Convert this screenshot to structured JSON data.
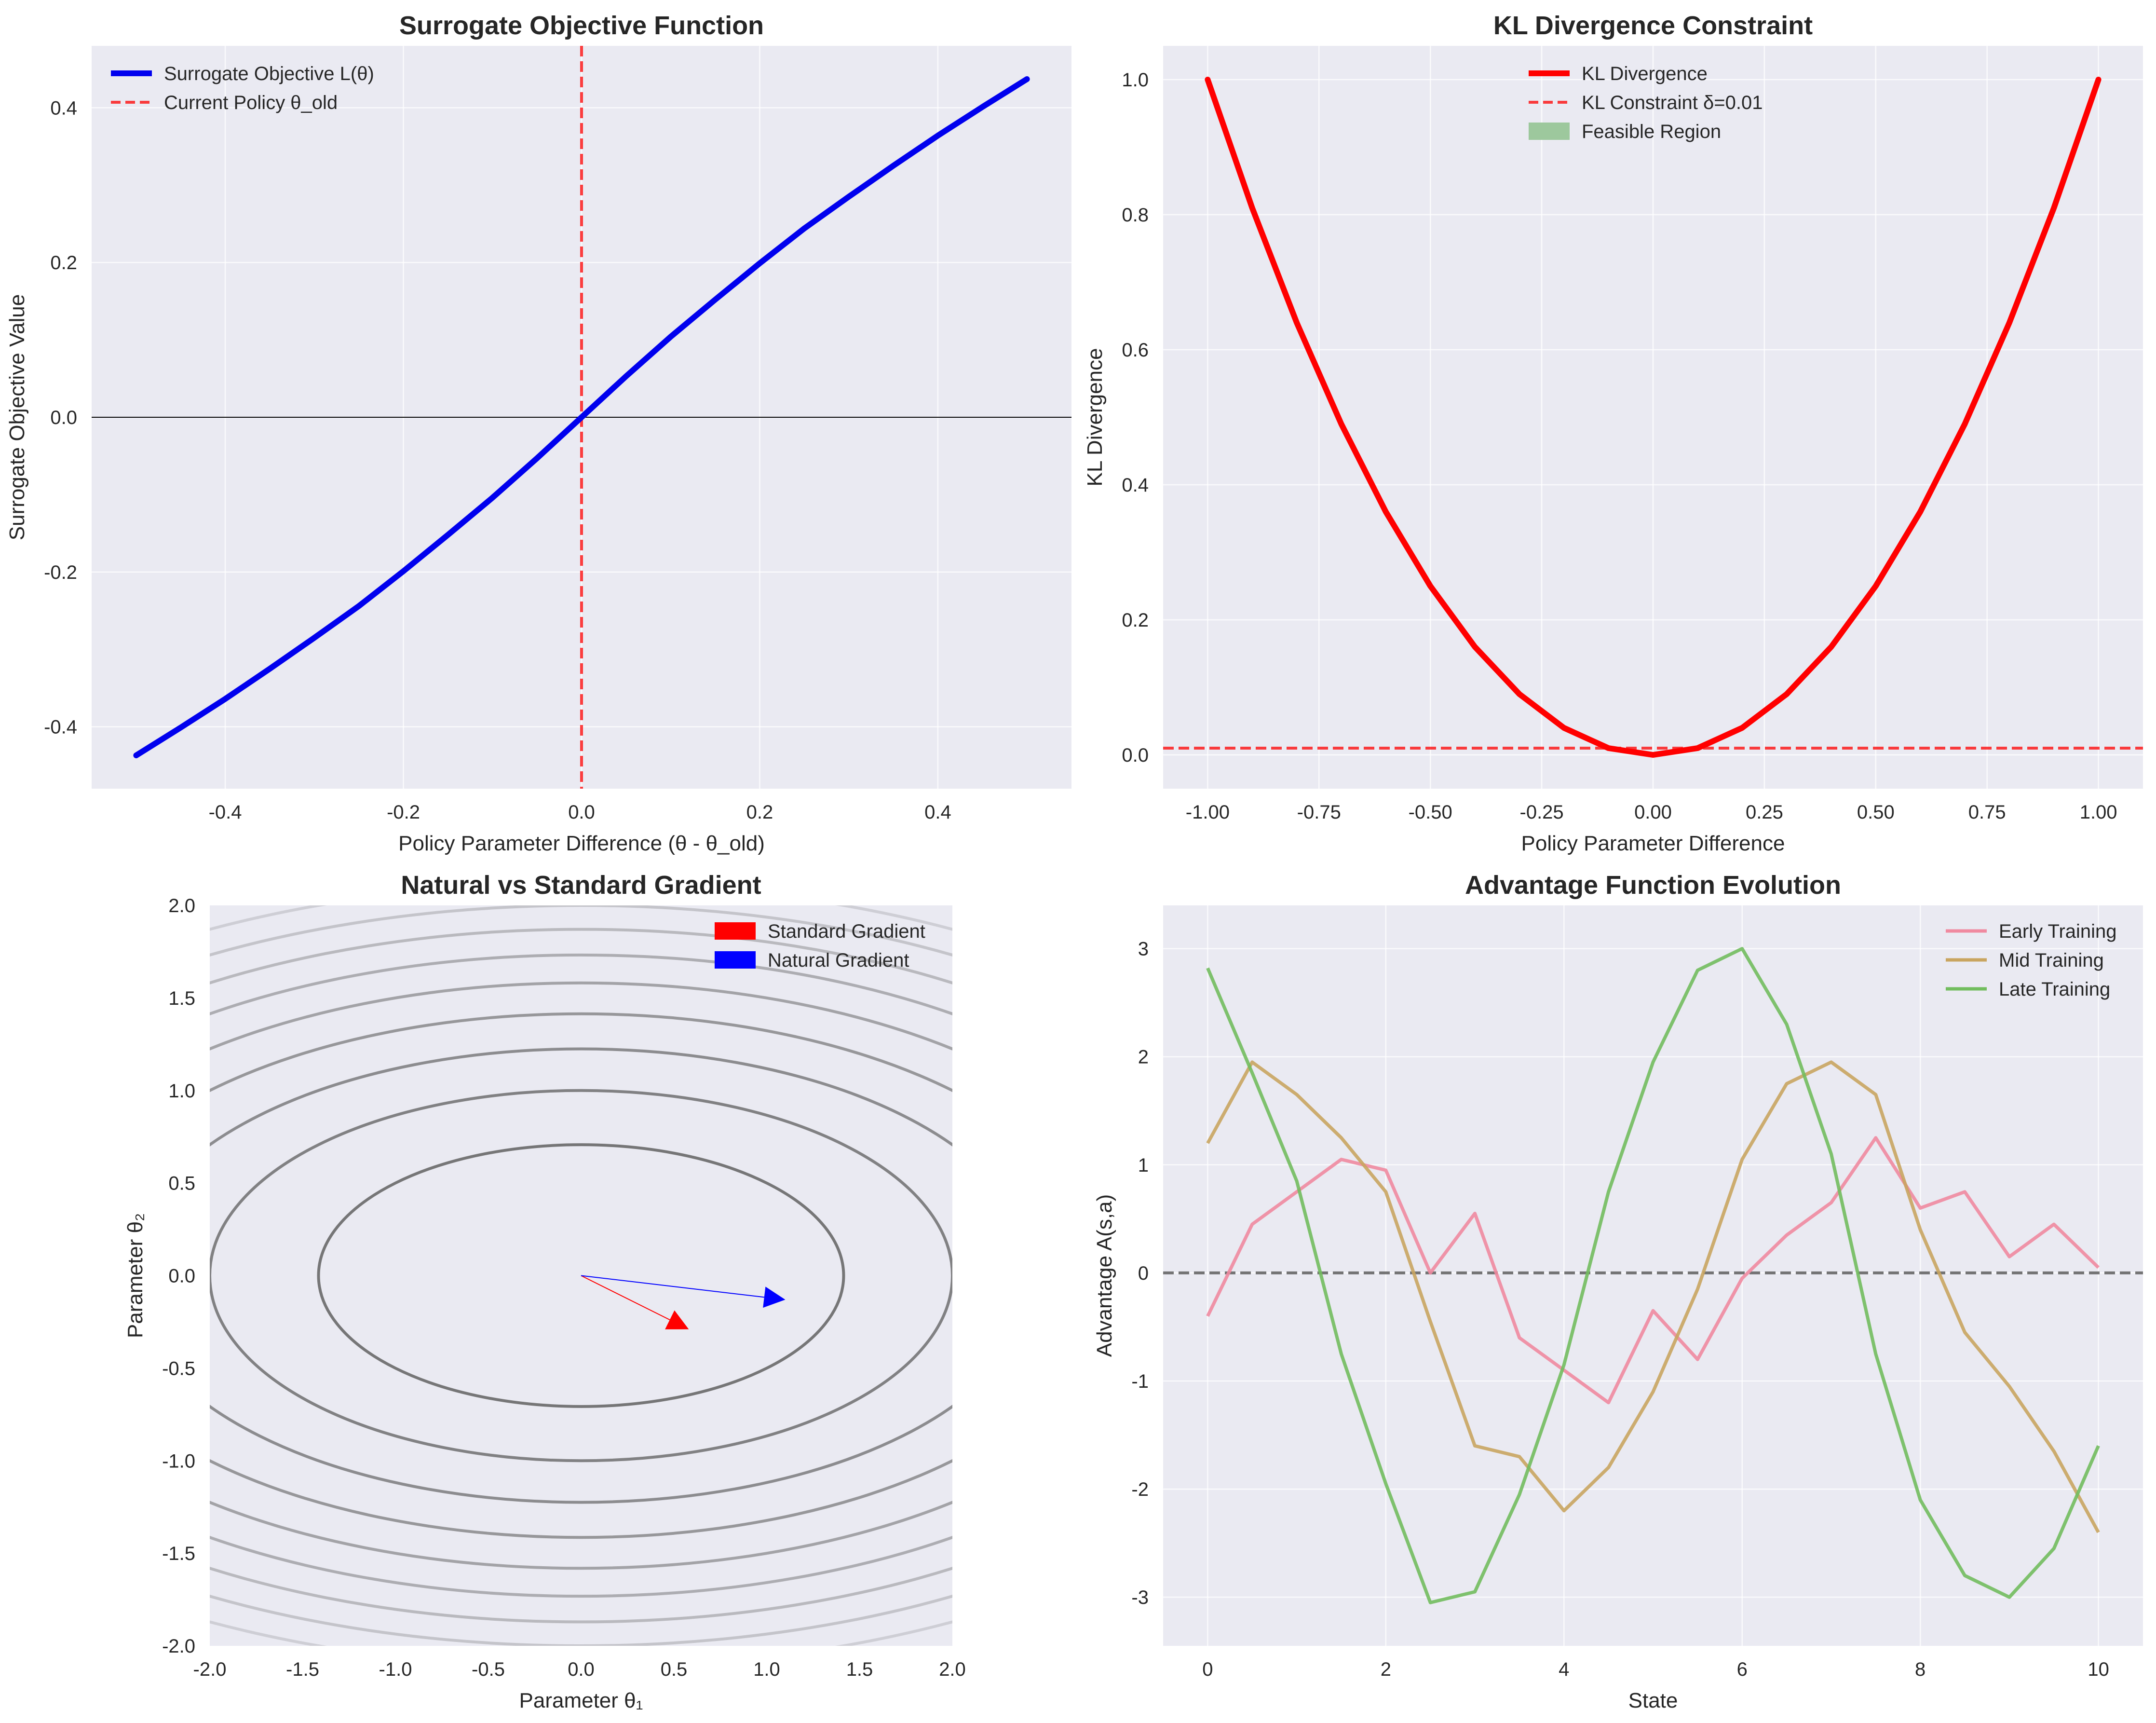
{
  "chart_data": [
    {
      "type": "line",
      "title": "Surrogate Objective Function",
      "xlabel": "Policy Parameter Difference (θ - θ_old)",
      "ylabel": "Surrogate Objective Value",
      "xlim": [
        -0.55,
        0.55
      ],
      "ylim": [
        -0.48,
        0.48
      ],
      "xticks": [
        -0.4,
        -0.2,
        0.0,
        0.2,
        0.4
      ],
      "xtick_labels": [
        "-0.4",
        "-0.2",
        "0.0",
        "0.2",
        "0.4"
      ],
      "yticks": [
        -0.4,
        -0.2,
        0.0,
        0.2,
        0.4
      ],
      "ytick_labels": [
        "-0.4",
        "-0.2",
        "0.0",
        "0.2",
        "0.4"
      ],
      "grid": true,
      "legend_position": "upper-left",
      "hline": {
        "y": 0,
        "color": "#000000"
      },
      "vline": {
        "x": 0,
        "name": "Current Policy θ_old",
        "color": "#ff0000",
        "style": "dashed"
      },
      "series": [
        {
          "name": "Surrogate Objective L(θ)",
          "color": "#0000ee",
          "x": [
            -0.5,
            -0.45,
            -0.4,
            -0.35,
            -0.3,
            -0.25,
            -0.2,
            -0.15,
            -0.1,
            -0.05,
            0.0,
            0.05,
            0.1,
            0.15,
            0.2,
            0.25,
            0.3,
            0.35,
            0.4,
            0.45,
            0.5
          ],
          "values": [
            -0.437,
            -0.401,
            -0.364,
            -0.325,
            -0.285,
            -0.244,
            -0.199,
            -0.152,
            -0.104,
            -0.053,
            0.0,
            0.053,
            0.104,
            0.152,
            0.199,
            0.244,
            0.285,
            0.325,
            0.364,
            0.401,
            0.437
          ]
        }
      ]
    },
    {
      "type": "line",
      "title": "KL Divergence Constraint",
      "xlabel": "Policy Parameter Difference",
      "ylabel": "KL Divergence",
      "xlim": [
        -1.1,
        1.1
      ],
      "ylim": [
        -0.05,
        1.05
      ],
      "xticks": [
        -1.0,
        -0.75,
        -0.5,
        -0.25,
        0.0,
        0.25,
        0.5,
        0.75,
        1.0
      ],
      "xtick_labels": [
        "-1.00",
        "-0.75",
        "-0.50",
        "-0.25",
        "0.00",
        "0.25",
        "0.50",
        "0.75",
        "1.00"
      ],
      "yticks": [
        0.0,
        0.2,
        0.4,
        0.6,
        0.8,
        1.0
      ],
      "ytick_labels": [
        "0.0",
        "0.2",
        "0.4",
        "0.6",
        "0.8",
        "1.0"
      ],
      "grid": true,
      "legend_position": "upper-center",
      "constraint": {
        "y": 0.01,
        "name": "KL Constraint δ=0.01",
        "color": "#ff0000"
      },
      "feasible_region": {
        "name": "Feasible Region",
        "color": "#9dc89d"
      },
      "series": [
        {
          "name": "KL Divergence",
          "color": "#ff0000",
          "x": [
            -1.0,
            -0.9,
            -0.8,
            -0.7,
            -0.6,
            -0.5,
            -0.4,
            -0.3,
            -0.2,
            -0.1,
            0.0,
            0.1,
            0.2,
            0.3,
            0.4,
            0.5,
            0.6,
            0.7,
            0.8,
            0.9,
            1.0
          ],
          "values": [
            1.0,
            0.81,
            0.64,
            0.49,
            0.36,
            0.25,
            0.16,
            0.09,
            0.04,
            0.01,
            0.0,
            0.01,
            0.04,
            0.09,
            0.16,
            0.25,
            0.36,
            0.49,
            0.64,
            0.81,
            1.0
          ]
        }
      ]
    },
    {
      "type": "contour",
      "title": "Natural vs Standard Gradient",
      "xlabel": "Parameter θ₁",
      "ylabel": "Parameter θ₂",
      "xlim": [
        -2,
        2
      ],
      "ylim": [
        -2,
        2
      ],
      "xticks": [
        -2.0,
        -1.5,
        -1.0,
        -0.5,
        0.0,
        0.5,
        1.0,
        1.5,
        2.0
      ],
      "xtick_labels": [
        "-2.0",
        "-1.5",
        "-1.0",
        "-0.5",
        "0.0",
        "0.5",
        "1.0",
        "1.5",
        "2.0"
      ],
      "yticks": [
        -2.0,
        -1.5,
        -1.0,
        -0.5,
        0.0,
        0.5,
        1.0,
        1.5,
        2.0
      ],
      "ytick_labels": [
        "-2.0",
        "-1.5",
        "-1.0",
        "-0.5",
        "0.0",
        "0.5",
        "1.0",
        "1.5",
        "2.0"
      ],
      "legend_position": "upper-right",
      "contour_function": "f = x^2 + 4 y^2",
      "contour_levels": [
        2,
        4,
        6,
        8,
        10,
        12,
        14,
        16,
        18
      ],
      "arrows": [
        {
          "name": "Standard Gradient",
          "color": "#ff0000",
          "from": [
            0,
            0
          ],
          "to": [
            0.58,
            -0.29
          ]
        },
        {
          "name": "Natural Gradient",
          "color": "#0000ff",
          "from": [
            0,
            0
          ],
          "to": [
            1.1,
            -0.13
          ]
        }
      ]
    },
    {
      "type": "line",
      "title": "Advantage Function Evolution",
      "xlabel": "State",
      "ylabel": "Advantage A(s,a)",
      "xlim": [
        -0.5,
        10.5
      ],
      "ylim": [
        -3.45,
        3.4
      ],
      "xticks": [
        0,
        2,
        4,
        6,
        8,
        10
      ],
      "xtick_labels": [
        "0",
        "2",
        "4",
        "6",
        "8",
        "10"
      ],
      "yticks": [
        -3,
        -2,
        -1,
        0,
        1,
        2,
        3
      ],
      "ytick_labels": [
        "-3",
        "-2",
        "-1",
        "0",
        "1",
        "2",
        "3"
      ],
      "grid": true,
      "legend_position": "upper-right",
      "hline": {
        "y": 0,
        "color": "#555555",
        "style": "dashed"
      },
      "series": [
        {
          "name": "Early Training",
          "color": "#f08aa0",
          "x": [
            0,
            0.5,
            1,
            1.5,
            2,
            2.5,
            3,
            3.5,
            4,
            4.5,
            5,
            5.5,
            6,
            6.5,
            7,
            7.5,
            8,
            8.5,
            9,
            9.5,
            10
          ],
          "values": [
            -0.4,
            0.45,
            0.75,
            1.05,
            0.95,
            0.0,
            0.55,
            -0.6,
            -0.9,
            -1.2,
            -0.35,
            -0.8,
            -0.05,
            0.35,
            0.65,
            1.25,
            0.6,
            0.75,
            0.15,
            0.45,
            0.05
          ]
        },
        {
          "name": "Mid Training",
          "color": "#c9a560",
          "x": [
            0,
            0.5,
            1,
            1.5,
            2,
            2.5,
            3,
            3.5,
            4,
            4.5,
            5,
            5.5,
            6,
            6.5,
            7,
            7.5,
            8,
            8.5,
            9,
            9.5,
            10
          ],
          "values": [
            1.2,
            1.95,
            1.65,
            1.25,
            0.75,
            -0.45,
            -1.6,
            -1.7,
            -2.2,
            -1.8,
            -1.1,
            -0.15,
            1.05,
            1.75,
            1.95,
            1.65,
            0.4,
            -0.55,
            -1.05,
            -1.65,
            -2.4
          ]
        },
        {
          "name": "Late Training",
          "color": "#72bd5e",
          "x": [
            0,
            0.5,
            1,
            1.5,
            2,
            2.5,
            3,
            3.5,
            4,
            4.5,
            5,
            5.5,
            6,
            6.5,
            7,
            7.5,
            8,
            8.5,
            9,
            9.5,
            10
          ],
          "values": [
            2.82,
            1.85,
            0.85,
            -0.75,
            -1.95,
            -3.05,
            -2.95,
            -2.05,
            -0.85,
            0.75,
            1.95,
            2.8,
            3.0,
            2.3,
            1.1,
            -0.75,
            -2.1,
            -2.8,
            -3.0,
            -2.55,
            -1.6
          ]
        }
      ]
    }
  ]
}
